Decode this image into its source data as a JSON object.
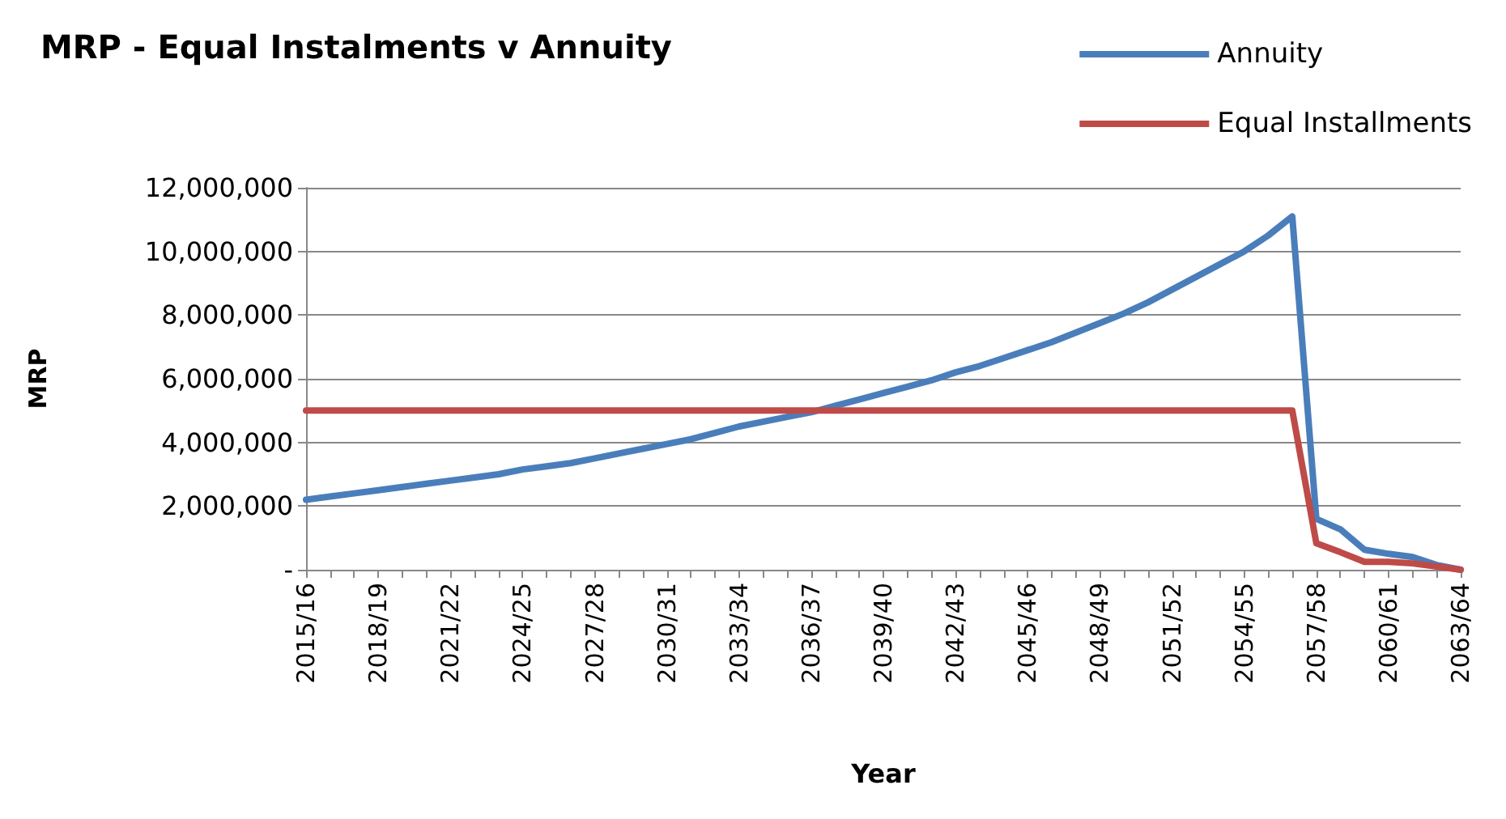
{
  "chart_data": {
    "type": "line",
    "title": "MRP - Equal Instalments v Annuity",
    "xlabel": "Year",
    "ylabel": "MRP",
    "categories": [
      "2015/16",
      null,
      null,
      "2018/19",
      null,
      null,
      "2021/22",
      null,
      null,
      "2024/25",
      null,
      null,
      "2027/28",
      null,
      null,
      "2030/31",
      null,
      null,
      "2033/34",
      null,
      null,
      "2036/37",
      null,
      null,
      "2039/40",
      null,
      null,
      "2042/43",
      null,
      null,
      "2045/46",
      null,
      null,
      "2048/49",
      null,
      null,
      "2051/52",
      null,
      null,
      "2054/55",
      null,
      null,
      "2057/58",
      null,
      null,
      "2060/61",
      null,
      null,
      "2063/64"
    ],
    "series": [
      {
        "name": "Annuity",
        "color": "#4a7ebb",
        "values": [
          2200000,
          2300000,
          2400000,
          2500000,
          2600000,
          2700000,
          2800000,
          2900000,
          3000000,
          3150000,
          3250000,
          3350000,
          3500000,
          3650000,
          3800000,
          3950000,
          4100000,
          4300000,
          4500000,
          4650000,
          4800000,
          4950000,
          5150000,
          5350000,
          5550000,
          5750000,
          5950000,
          6200000,
          6400000,
          6650000,
          6900000,
          7150000,
          7450000,
          7750000,
          8050000,
          8400000,
          8800000,
          9200000,
          9600000,
          10000000,
          10500000,
          11100000,
          1600000,
          1270000,
          630000,
          500000,
          400000,
          150000,
          0
        ]
      },
      {
        "name": "Equal Installments",
        "color": "#be4b48",
        "values": [
          5000000,
          5000000,
          5000000,
          5000000,
          5000000,
          5000000,
          5000000,
          5000000,
          5000000,
          5000000,
          5000000,
          5000000,
          5000000,
          5000000,
          5000000,
          5000000,
          5000000,
          5000000,
          5000000,
          5000000,
          5000000,
          5000000,
          5000000,
          5000000,
          5000000,
          5000000,
          5000000,
          5000000,
          5000000,
          5000000,
          5000000,
          5000000,
          5000000,
          5000000,
          5000000,
          5000000,
          5000000,
          5000000,
          5000000,
          5000000,
          5000000,
          5000000,
          830000,
          550000,
          250000,
          250000,
          200000,
          100000,
          0
        ]
      }
    ],
    "ylim": [
      0,
      12000000
    ],
    "yticks": [
      {
        "value": 0,
        "label": "-"
      },
      {
        "value": 2000000,
        "label": "2,000,000"
      },
      {
        "value": 4000000,
        "label": "4,000,000"
      },
      {
        "value": 6000000,
        "label": "6,000,000"
      },
      {
        "value": 8000000,
        "label": "8,000,000"
      },
      {
        "value": 10000000,
        "label": "10,000,000"
      },
      {
        "value": 12000000,
        "label": "12,000,000"
      }
    ],
    "grid": "y",
    "legend": "top right",
    "marker": "none",
    "line_style": "solid"
  }
}
